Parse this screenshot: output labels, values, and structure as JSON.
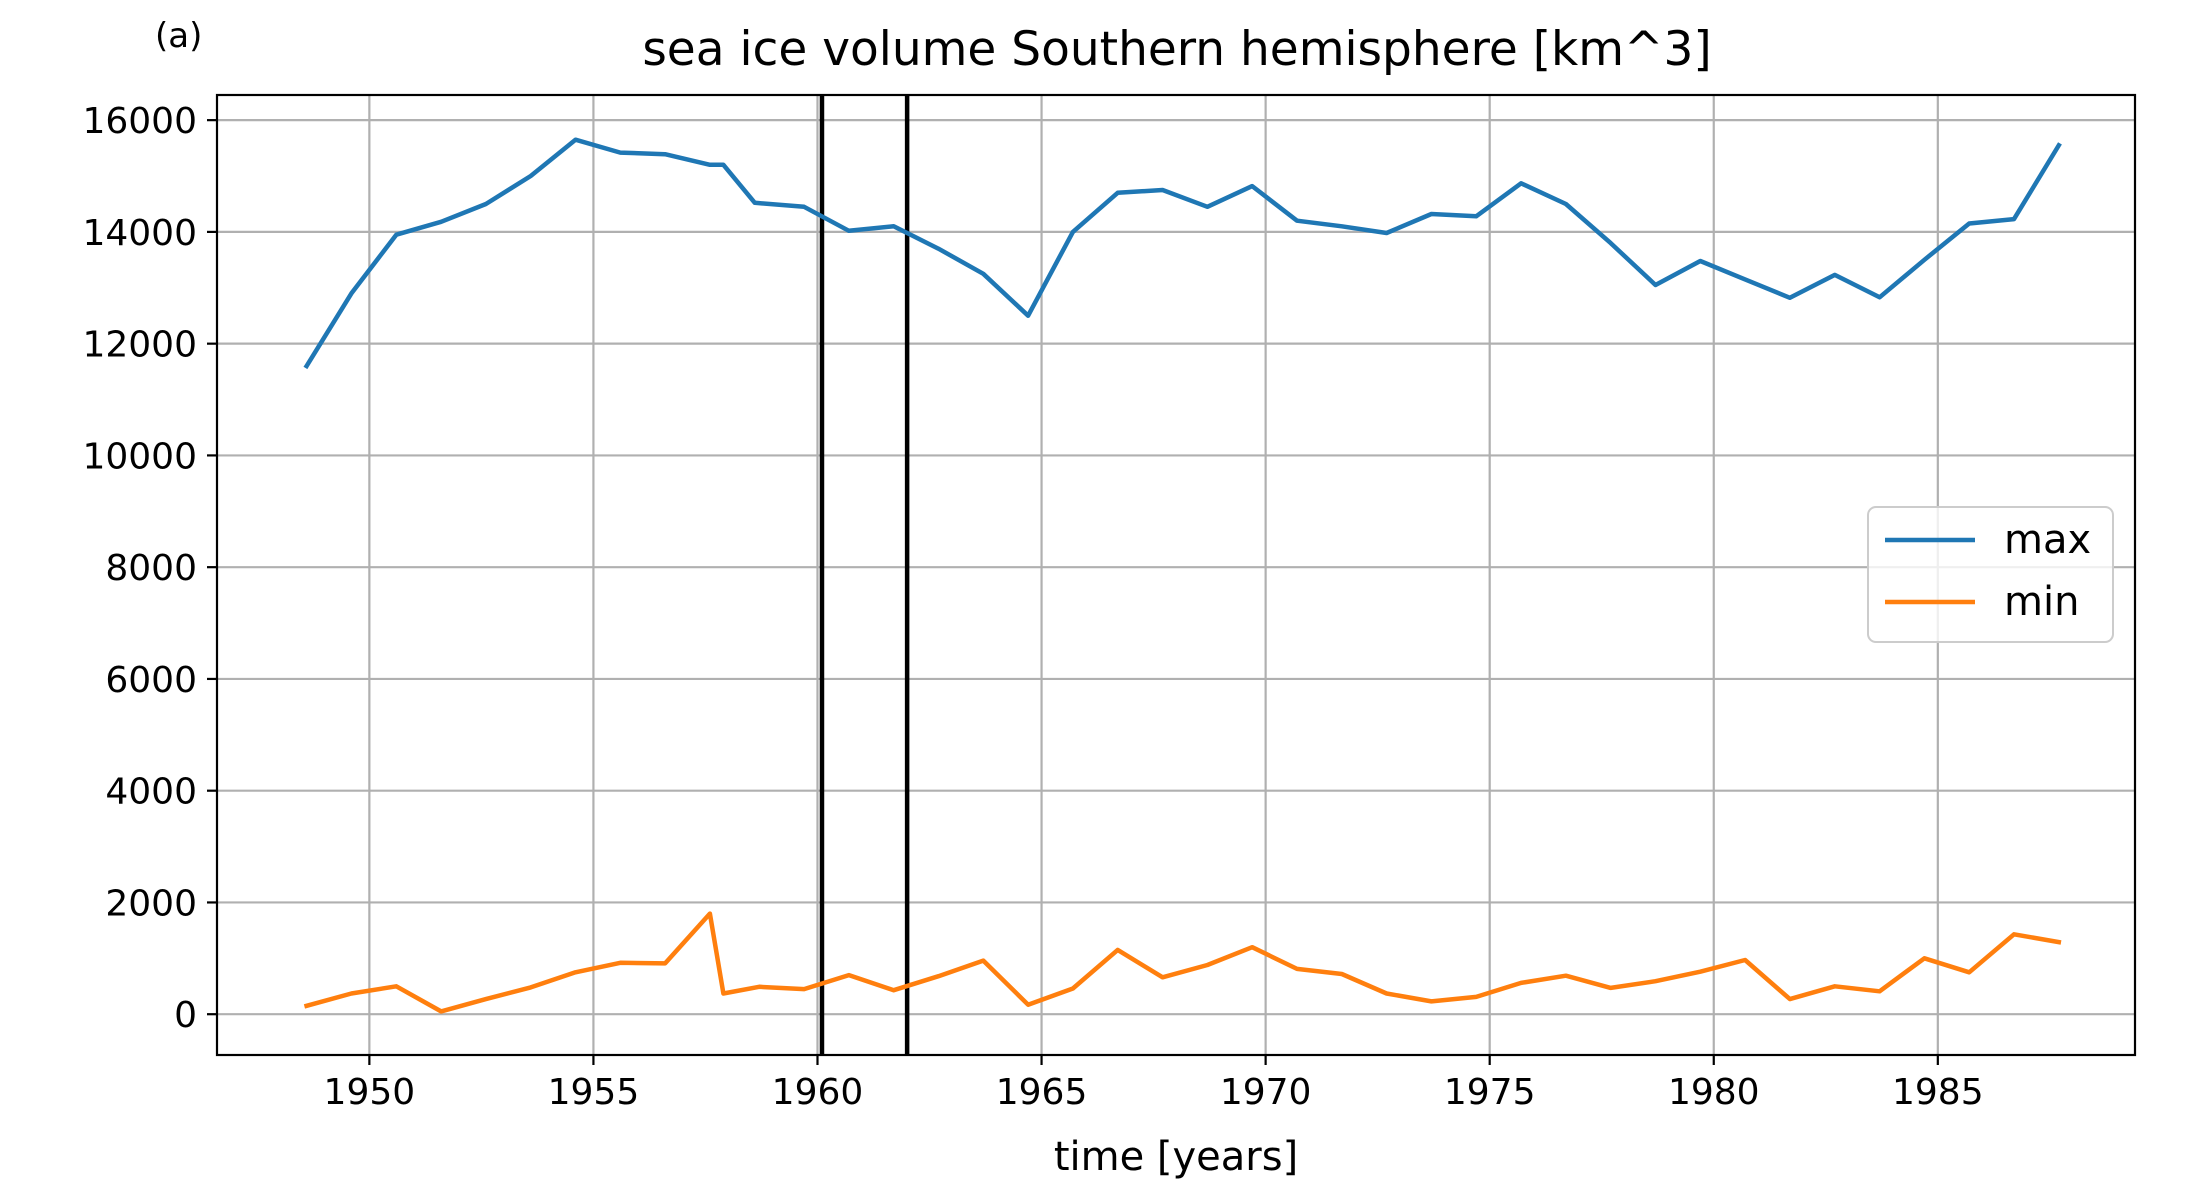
{
  "chart_data": {
    "type": "line",
    "panel_label": "(a)",
    "title": "sea ice volume Southern hemisphere [km^3]",
    "xlabel": "time [years]",
    "ylabel": "",
    "xlim": [
      1946.6,
      1989.4
    ],
    "ylim": [
      -730,
      16450
    ],
    "xticks": [
      1950,
      1955,
      1960,
      1965,
      1970,
      1975,
      1980,
      1985
    ],
    "yticks": [
      0,
      2000,
      4000,
      6000,
      8000,
      10000,
      12000,
      14000,
      16000
    ],
    "grid": true,
    "legend_position": "center-right",
    "vertical_lines": [
      1960.1,
      1962.0
    ],
    "series": [
      {
        "name": "max",
        "color": "#1f77b4",
        "x": [
          1948.6,
          1949.6,
          1950.6,
          1951.6,
          1952.6,
          1953.6,
          1954.6,
          1955.6,
          1956.6,
          1957.6,
          1957.9,
          1958.6,
          1959.7,
          1960.7,
          1961.7,
          1962.7,
          1963.7,
          1964.7,
          1965.7,
          1966.7,
          1967.7,
          1968.7,
          1969.7,
          1970.7,
          1971.7,
          1972.7,
          1973.7,
          1974.7,
          1975.7,
          1976.7,
          1977.7,
          1978.7,
          1979.7,
          1980.7,
          1981.7,
          1982.7,
          1983.7,
          1984.7,
          1985.7,
          1986.7,
          1987.7
        ],
        "values": [
          11600,
          12900,
          13950,
          14180,
          14500,
          15000,
          15650,
          15420,
          15390,
          15200,
          15200,
          14520,
          14450,
          14020,
          14100,
          13700,
          13250,
          12500,
          14000,
          14700,
          14750,
          14450,
          14820,
          14200,
          14100,
          13980,
          14320,
          14280,
          14870,
          14500,
          13800,
          13050,
          13480,
          13150,
          12820,
          13230,
          12830,
          13500,
          14150,
          14230,
          15550
        ]
      },
      {
        "name": "min",
        "color": "#ff7f0e",
        "x": [
          1948.6,
          1949.6,
          1950.6,
          1951.6,
          1952.6,
          1953.6,
          1954.6,
          1955.6,
          1956.6,
          1957.6,
          1957.9,
          1958.7,
          1959.7,
          1960.7,
          1961.7,
          1962.7,
          1963.7,
          1964.7,
          1965.7,
          1966.7,
          1967.7,
          1968.7,
          1969.7,
          1970.7,
          1971.7,
          1972.7,
          1973.7,
          1974.7,
          1975.7,
          1976.7,
          1977.7,
          1978.7,
          1979.7,
          1980.7,
          1981.7,
          1982.7,
          1983.7,
          1984.7,
          1985.7,
          1986.7,
          1987.7
        ],
        "values": [
          150,
          370,
          500,
          50,
          270,
          480,
          750,
          920,
          910,
          1800,
          370,
          490,
          450,
          700,
          430,
          680,
          960,
          170,
          460,
          1150,
          660,
          880,
          1200,
          810,
          720,
          370,
          230,
          310,
          560,
          690,
          470,
          590,
          760,
          970,
          270,
          500,
          410,
          1000,
          750,
          1430,
          1290
        ]
      }
    ]
  }
}
